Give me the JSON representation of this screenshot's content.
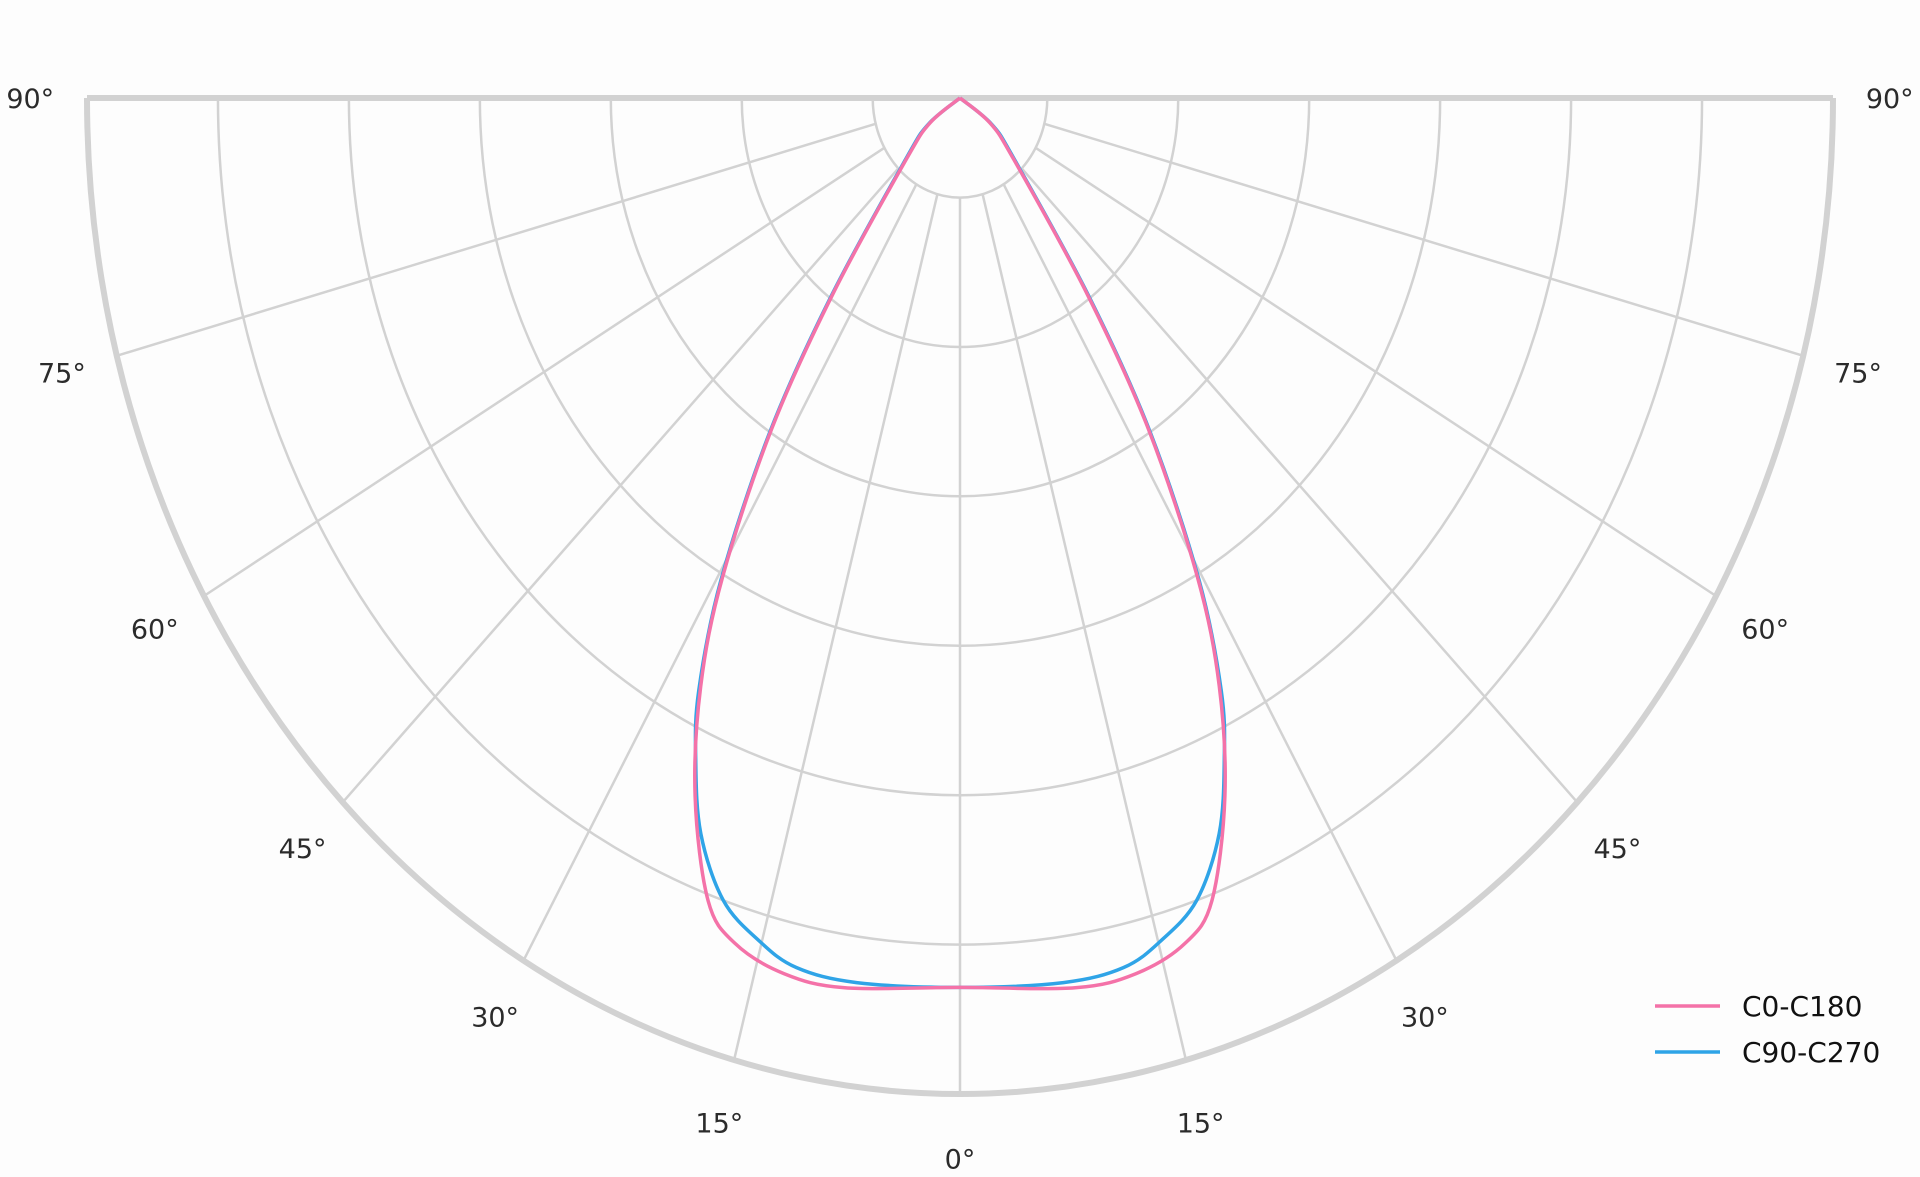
{
  "chart_data": {
    "type": "polar",
    "title": "",
    "radial_axis": {
      "rlim": [
        0,
        1
      ],
      "rgrid": [
        0.1,
        0.25,
        0.4,
        0.55,
        0.7,
        0.85,
        1.0
      ],
      "tick_labels_shown": false
    },
    "angular_ticks": [
      {
        "angle": -90,
        "label": "90°"
      },
      {
        "angle": -75,
        "label": "75°"
      },
      {
        "angle": -60,
        "label": "60°"
      },
      {
        "angle": -45,
        "label": "45°"
      },
      {
        "angle": -30,
        "label": "30°"
      },
      {
        "angle": -15,
        "label": "15°"
      },
      {
        "angle": 0,
        "label": "0°"
      },
      {
        "angle": 15,
        "label": "15°"
      },
      {
        "angle": 30,
        "label": "30°"
      },
      {
        "angle": 45,
        "label": "45°"
      },
      {
        "angle": 60,
        "label": "60°"
      },
      {
        "angle": 75,
        "label": "75°"
      },
      {
        "angle": 90,
        "label": "90°"
      }
    ],
    "grid": true,
    "legend_position": "bottom-right",
    "symmetric": true,
    "series": [
      {
        "name": "C0-C180",
        "color": "#f472a8",
        "angles": [
          0,
          8.4,
          12.9,
          16.9,
          19.7,
          23.4,
          26.7,
          29.5,
          33,
          36.5,
          45,
          54,
          90
        ],
        "values": [
          0.893,
          0.903,
          0.902,
          0.887,
          0.856,
          0.764,
          0.661,
          0.552,
          0.396,
          0.245,
          0.087,
          0.042,
          0
        ]
      },
      {
        "name": "C90-C270",
        "color": "#2fa4e7",
        "angles": [
          0,
          7.6,
          12.1,
          15.2,
          18.6,
          21.9,
          24.5,
          26.7,
          29.5,
          33,
          36.5,
          45,
          54,
          90
        ],
        "values": [
          0.893,
          0.896,
          0.893,
          0.877,
          0.85,
          0.796,
          0.73,
          0.666,
          0.556,
          0.4,
          0.25,
          0.09,
          0.045,
          0
        ]
      }
    ]
  }
}
